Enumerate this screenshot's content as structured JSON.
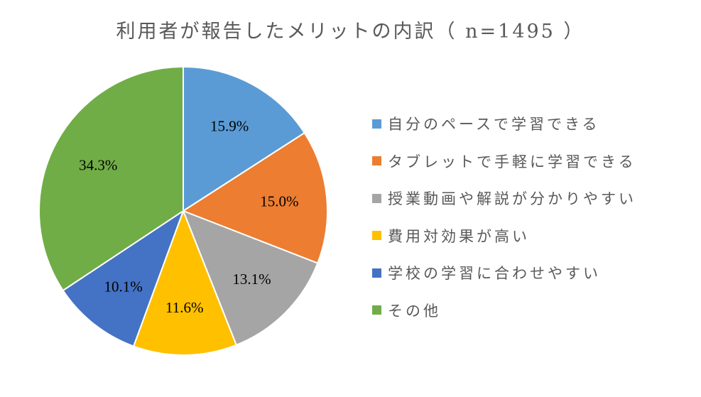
{
  "chart_data": {
    "type": "pie",
    "title": "利用者が報告したメリットの内訳（ n=1495 ）",
    "start_angle_deg": 0,
    "direction": "clockwise",
    "legend_position": "right",
    "slices": [
      {
        "label": "自分のペースで学習できる",
        "value": 15.9,
        "value_label": "15.9%",
        "color": "#5B9BD5"
      },
      {
        "label": "タブレットで手軽に学習できる",
        "value": 15.0,
        "value_label": "15.0%",
        "color": "#ED7D31"
      },
      {
        "label": "授業動画や解説が分かりやすい",
        "value": 13.1,
        "value_label": "13.1%",
        "color": "#A5A5A5"
      },
      {
        "label": "費用対効果が高い",
        "value": 11.6,
        "value_label": "11.6%",
        "color": "#FFC000"
      },
      {
        "label": "学校の学習に合わせやすい",
        "value": 10.1,
        "value_label": "10.1%",
        "color": "#4472C4"
      },
      {
        "label": "その他",
        "value": 34.3,
        "value_label": "34.3%",
        "color": "#70AD47"
      }
    ]
  }
}
